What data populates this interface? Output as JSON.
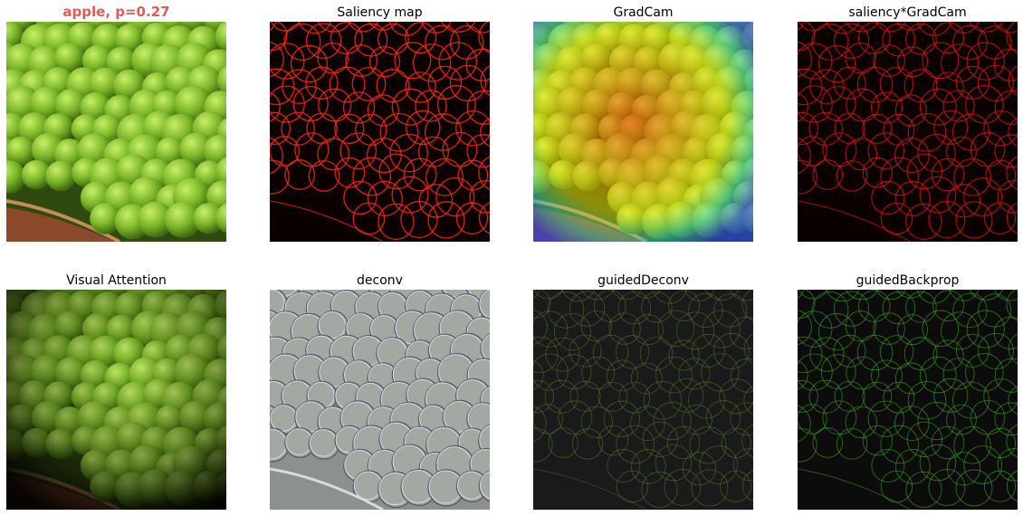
{
  "panels": [
    {
      "title": "apple, p=0.27",
      "kind": "original"
    },
    {
      "title": "Saliency map",
      "kind": "saliency"
    },
    {
      "title": "GradCam",
      "kind": "gradcam"
    },
    {
      "title": "saliency*GradCam",
      "kind": "saliency-gradcam"
    },
    {
      "title": "Visual Attention",
      "kind": "attention"
    },
    {
      "title": "deconv",
      "kind": "deconv"
    },
    {
      "title": "guidedDeconv",
      "kind": "guided-deconv"
    },
    {
      "title": "guidedBackprop",
      "kind": "guided-backprop"
    }
  ],
  "colors": {
    "prediction_title": "#e05a5a",
    "pea_green": "#7fb82a",
    "saliency_edge": "#ff2a10",
    "deconv_bg": "#8d918d"
  }
}
